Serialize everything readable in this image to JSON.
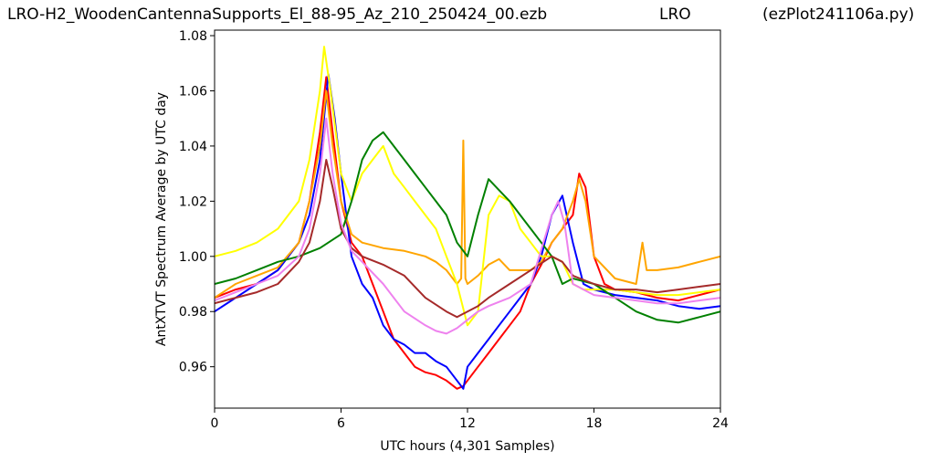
{
  "title": {
    "left": "LRO-H2_WoodenCantennaSupports_El_88-95_Az_210_250424_00.ezb",
    "middle": "LRO",
    "right": "(ezPlot241106a.py)"
  },
  "chart_data": {
    "type": "line",
    "xlabel": "UTC hours  (4,301 Samples)",
    "ylabel": "AntXTVT Spectrum Average by UTC day",
    "xlim": [
      0,
      24
    ],
    "ylim": [
      0.945,
      1.082
    ],
    "xticks": [
      0,
      6,
      12,
      18,
      24
    ],
    "xtick_labels": [
      "0",
      "6",
      "12",
      "18",
      "24"
    ],
    "yticks": [
      0.96,
      0.98,
      1.0,
      1.02,
      1.04,
      1.06,
      1.08
    ],
    "ytick_labels": [
      "0.96",
      "0.98",
      "1.00",
      "1.02",
      "1.04",
      "1.06",
      "1.08"
    ],
    "grid": false,
    "series": [
      {
        "color": "#ff0000",
        "x": [
          0,
          1,
          2,
          3,
          4,
          4.5,
          5,
          5.3,
          5.6,
          6,
          6.5,
          7,
          7.5,
          8,
          8.5,
          9,
          9.5,
          10,
          10.5,
          11,
          11.5,
          11.8,
          12,
          12.5,
          13,
          13.5,
          14,
          14.5,
          15,
          15.5,
          16,
          16.5,
          17,
          17.3,
          17.6,
          18,
          18.5,
          19,
          20,
          21,
          22,
          23,
          24
        ],
        "y": [
          0.985,
          0.988,
          0.99,
          0.995,
          1.005,
          1.02,
          1.045,
          1.065,
          1.045,
          1.02,
          1.005,
          1.0,
          0.99,
          0.98,
          0.97,
          0.965,
          0.96,
          0.958,
          0.957,
          0.955,
          0.952,
          0.953,
          0.955,
          0.96,
          0.965,
          0.97,
          0.975,
          0.98,
          0.99,
          0.997,
          1.005,
          1.01,
          1.015,
          1.03,
          1.025,
          1.0,
          0.99,
          0.988,
          0.987,
          0.985,
          0.984,
          0.986,
          0.988
        ]
      },
      {
        "color": "#0000ff",
        "x": [
          0,
          1,
          2,
          3,
          4,
          4.5,
          5,
          5.4,
          5.7,
          6,
          6.5,
          7,
          7.5,
          8,
          8.5,
          9,
          9.5,
          10,
          10.5,
          11,
          11.5,
          11.8,
          12,
          12.5,
          13,
          13.5,
          14,
          14.5,
          15,
          15.5,
          16,
          16.5,
          17,
          17.5,
          18,
          19,
          20,
          21,
          22,
          23,
          24
        ],
        "y": [
          0.98,
          0.985,
          0.99,
          0.995,
          1.005,
          1.015,
          1.035,
          1.066,
          1.05,
          1.03,
          1.0,
          0.99,
          0.985,
          0.975,
          0.97,
          0.968,
          0.965,
          0.965,
          0.962,
          0.96,
          0.955,
          0.952,
          0.96,
          0.965,
          0.97,
          0.975,
          0.98,
          0.985,
          0.99,
          1.0,
          1.015,
          1.022,
          1.005,
          0.99,
          0.988,
          0.986,
          0.985,
          0.984,
          0.982,
          0.981,
          0.982
        ]
      },
      {
        "color": "#ffa500",
        "x": [
          0,
          1,
          2,
          3,
          4,
          4.5,
          5,
          5.3,
          5.6,
          6,
          6.5,
          7,
          8,
          9,
          10,
          10.5,
          11,
          11.5,
          11.7,
          11.8,
          11.9,
          12,
          12.5,
          13,
          13.5,
          14,
          15,
          15.5,
          16,
          16.5,
          17,
          17.3,
          17.6,
          18,
          19,
          20,
          20.3,
          20.5,
          21,
          22,
          23,
          24
        ],
        "y": [
          0.985,
          0.99,
          0.993,
          0.996,
          1.005,
          1.02,
          1.04,
          1.06,
          1.04,
          1.02,
          1.008,
          1.005,
          1.003,
          1.002,
          1.0,
          0.998,
          0.995,
          0.99,
          0.992,
          1.042,
          0.992,
          0.99,
          0.993,
          0.997,
          0.999,
          0.995,
          0.995,
          0.998,
          1.005,
          1.01,
          1.02,
          1.028,
          1.02,
          1.0,
          0.992,
          0.99,
          1.005,
          0.995,
          0.995,
          0.996,
          0.998,
          1.0
        ]
      },
      {
        "color": "#ffff00",
        "x": [
          0,
          1,
          2,
          3,
          4,
          4.5,
          5,
          5.2,
          5.5,
          6,
          6.5,
          7,
          7.5,
          8,
          8.5,
          9,
          9.5,
          10,
          10.5,
          11,
          11.5,
          12,
          12.5,
          13,
          13.5,
          14,
          14.5,
          15,
          15.5,
          16,
          16.5,
          17,
          17.5,
          18,
          19,
          20,
          21,
          22,
          23,
          24
        ],
        "y": [
          1.0,
          1.002,
          1.005,
          1.01,
          1.02,
          1.035,
          1.06,
          1.076,
          1.06,
          1.03,
          1.02,
          1.03,
          1.035,
          1.04,
          1.03,
          1.025,
          1.02,
          1.015,
          1.01,
          1.0,
          0.99,
          0.975,
          0.98,
          1.015,
          1.022,
          1.02,
          1.01,
          1.005,
          1.0,
          1.0,
          0.998,
          0.99,
          0.988,
          0.988,
          0.988,
          0.987,
          0.986,
          0.986,
          0.987,
          0.988
        ]
      },
      {
        "color": "#008000",
        "x": [
          0,
          1,
          2,
          3,
          4,
          5,
          6,
          6.5,
          7,
          7.5,
          8,
          8.5,
          9,
          9.5,
          10,
          10.5,
          11,
          11.5,
          12,
          12.5,
          13,
          13.5,
          14,
          14.5,
          15,
          15.5,
          16,
          16.5,
          17,
          18,
          19,
          20,
          21,
          22,
          23,
          24
        ],
        "y": [
          0.99,
          0.992,
          0.995,
          0.998,
          1.0,
          1.003,
          1.008,
          1.02,
          1.035,
          1.042,
          1.045,
          1.04,
          1.035,
          1.03,
          1.025,
          1.02,
          1.015,
          1.005,
          1.0,
          1.015,
          1.028,
          1.024,
          1.02,
          1.015,
          1.01,
          1.005,
          1.0,
          0.99,
          0.992,
          0.99,
          0.985,
          0.98,
          0.977,
          0.976,
          0.978,
          0.98
        ]
      },
      {
        "color": "#a52a2a",
        "x": [
          0,
          1,
          2,
          3,
          4,
          4.5,
          5,
          5.3,
          5.6,
          6,
          6.5,
          7,
          8,
          9,
          10,
          11,
          11.5,
          12,
          12.5,
          13,
          14,
          15,
          16,
          16.5,
          17,
          18,
          19,
          20,
          21,
          22,
          23,
          24
        ],
        "y": [
          0.983,
          0.985,
          0.987,
          0.99,
          0.998,
          1.005,
          1.02,
          1.035,
          1.025,
          1.01,
          1.003,
          1.0,
          0.997,
          0.993,
          0.985,
          0.98,
          0.978,
          0.98,
          0.982,
          0.985,
          0.99,
          0.995,
          1.0,
          0.998,
          0.993,
          0.99,
          0.988,
          0.988,
          0.987,
          0.988,
          0.989,
          0.99
        ]
      },
      {
        "color": "#ee82ee",
        "x": [
          0,
          1,
          2,
          3,
          4,
          4.5,
          5,
          5.3,
          5.6,
          6,
          6.5,
          7,
          8,
          9,
          10,
          10.5,
          11,
          11.5,
          12,
          12.5,
          13,
          14,
          15,
          16,
          16.3,
          16.6,
          17,
          18,
          19,
          20,
          21,
          22,
          23,
          24
        ],
        "y": [
          0.984,
          0.987,
          0.99,
          0.993,
          1.0,
          1.01,
          1.03,
          1.05,
          1.03,
          1.012,
          1.002,
          0.998,
          0.99,
          0.98,
          0.975,
          0.973,
          0.972,
          0.974,
          0.977,
          0.98,
          0.982,
          0.985,
          0.99,
          1.015,
          1.02,
          1.012,
          0.99,
          0.986,
          0.985,
          0.984,
          0.983,
          0.983,
          0.984,
          0.985
        ]
      }
    ]
  }
}
